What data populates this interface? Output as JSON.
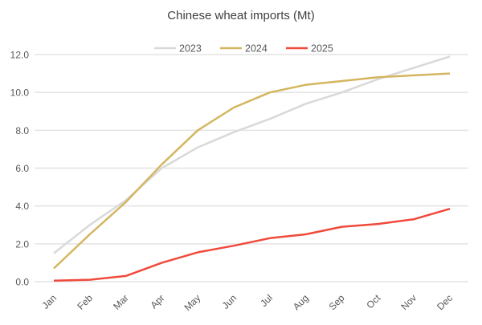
{
  "chart_data": {
    "type": "line",
    "title": "Chinese wheat imports (Mt)",
    "categories": [
      "Jan",
      "Feb",
      "Mar",
      "Apr",
      "May",
      "Jun",
      "Jul",
      "Aug",
      "Sep",
      "Oct",
      "Nov",
      "Dec"
    ],
    "yticks": [
      "0.0",
      "2.0",
      "4.0",
      "6.0",
      "8.0",
      "10.0",
      "12.0"
    ],
    "ylim": [
      0,
      12
    ],
    "grid": true,
    "legend_position": "top",
    "series": [
      {
        "name": "2023",
        "color": "#d9d9d9",
        "values": [
          1.5,
          3.0,
          4.3,
          6.0,
          7.1,
          7.9,
          8.6,
          9.4,
          10.0,
          10.7,
          11.3,
          11.9
        ]
      },
      {
        "name": "2024",
        "color": "#d4b560",
        "values": [
          0.7,
          2.5,
          4.2,
          6.2,
          8.0,
          9.2,
          10.0,
          10.4,
          10.6,
          10.8,
          10.9,
          11.0
        ]
      },
      {
        "name": "2025",
        "color": "#f04a3c",
        "values": [
          0.05,
          0.1,
          0.3,
          1.0,
          1.55,
          1.9,
          2.3,
          2.5,
          2.9,
          3.05,
          3.3,
          3.85
        ]
      }
    ]
  }
}
